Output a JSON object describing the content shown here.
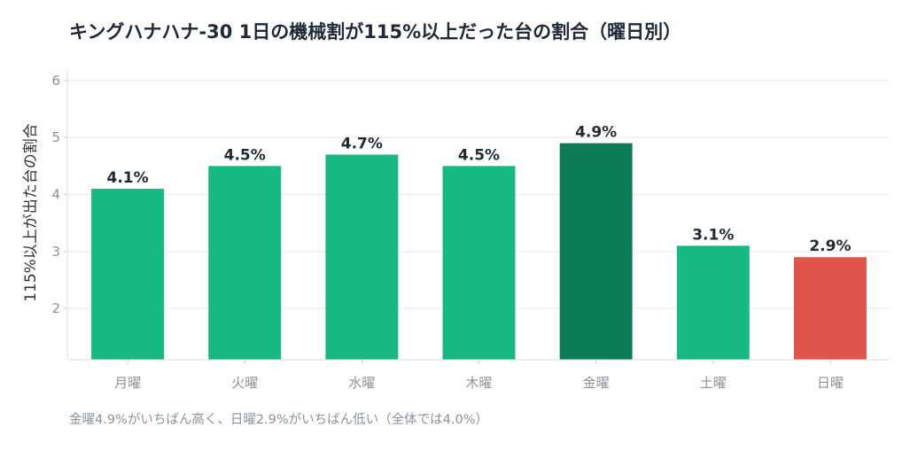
{
  "title": "キングハナハナ-30 1日の機械割が115%以上だった台の割合（曜日別）",
  "footnote": "金曜4.9%がいちばん高く、日曜2.9%がいちばん低い（全体では4.0%）",
  "chart_data": {
    "type": "bar",
    "title": "キングハナハナ-30 1日の機械割が115%以上だった台の割合（曜日別）",
    "xlabel": "",
    "ylabel": "115%以上が出た台の割合",
    "ylim": [
      1.1,
      6.2
    ],
    "yticks": [
      2,
      3,
      4,
      5,
      6
    ],
    "grid": true,
    "categories": [
      "月曜",
      "火曜",
      "水曜",
      "木曜",
      "金曜",
      "土曜",
      "日曜"
    ],
    "values": [
      4.1,
      4.5,
      4.7,
      4.5,
      4.9,
      3.1,
      2.9
    ],
    "value_labels": [
      "4.1%",
      "4.5%",
      "4.7%",
      "4.5%",
      "4.9%",
      "3.1%",
      "2.9%"
    ],
    "colors": [
      "#16b981",
      "#16b981",
      "#16b981",
      "#16b981",
      "#0c7c57",
      "#16b981",
      "#e0544c"
    ]
  }
}
